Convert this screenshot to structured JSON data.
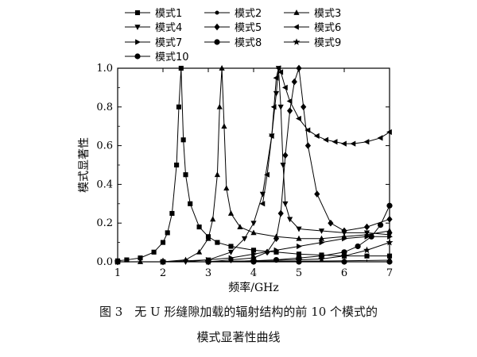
{
  "chart_data": {
    "type": "line",
    "xlabel": "频率/GHz",
    "ylabel": "模式显著性",
    "xlim": [
      1,
      7
    ],
    "ylim": [
      0,
      1.0
    ],
    "xticks": [
      "1",
      "2",
      "3",
      "4",
      "5",
      "6",
      "7"
    ],
    "yticks": [
      "0.0",
      "0.2",
      "0.4",
      "0.6",
      "0.8",
      "1.0"
    ],
    "grid": false,
    "legend_position": "top",
    "series": [
      {
        "name": "模式1",
        "marker": "square",
        "x": [
          1.0,
          1.2,
          1.5,
          1.8,
          2.0,
          2.1,
          2.2,
          2.3,
          2.35,
          2.4,
          2.45,
          2.5,
          2.6,
          2.8,
          3.0,
          3.2,
          3.5,
          4.0,
          4.5,
          5.0,
          5.5,
          6.0,
          6.5,
          7.0
        ],
        "y": [
          0.005,
          0.01,
          0.02,
          0.05,
          0.1,
          0.15,
          0.25,
          0.5,
          0.8,
          1.0,
          0.63,
          0.45,
          0.3,
          0.18,
          0.13,
          0.1,
          0.08,
          0.06,
          0.05,
          0.04,
          0.035,
          0.03,
          0.03,
          0.03
        ]
      },
      {
        "name": "模式2",
        "marker": "circle-small",
        "x": [
          1.0,
          2.0,
          3.0,
          4.0,
          5.0,
          6.0,
          7.0
        ],
        "y": [
          0.0,
          0.0,
          0.0,
          0.002,
          0.003,
          0.005,
          0.008
        ]
      },
      {
        "name": "模式3",
        "marker": "triangle-up",
        "x": [
          1.0,
          1.5,
          2.0,
          2.5,
          2.8,
          3.0,
          3.1,
          3.2,
          3.25,
          3.3,
          3.35,
          3.4,
          3.5,
          3.7,
          4.0,
          4.5,
          5.0,
          5.5,
          6.0,
          6.5,
          7.0
        ],
        "y": [
          0.0,
          0.0,
          0.0,
          0.01,
          0.05,
          0.12,
          0.22,
          0.45,
          0.8,
          1.0,
          0.7,
          0.38,
          0.25,
          0.18,
          0.15,
          0.13,
          0.12,
          0.12,
          0.13,
          0.14,
          0.16
        ]
      },
      {
        "name": "模式4",
        "marker": "triangle-down",
        "x": [
          1.0,
          2.0,
          2.5,
          3.0,
          3.5,
          3.8,
          4.0,
          4.2,
          4.4,
          4.5,
          4.55,
          4.6,
          4.65,
          4.7,
          4.8,
          5.0,
          5.5,
          6.0,
          6.5,
          7.0
        ],
        "y": [
          0.0,
          0.0,
          0.0,
          0.01,
          0.05,
          0.12,
          0.2,
          0.35,
          0.65,
          0.87,
          1.0,
          0.8,
          0.5,
          0.3,
          0.22,
          0.17,
          0.16,
          0.15,
          0.15,
          0.14
        ]
      },
      {
        "name": "模式5",
        "marker": "diamond",
        "x": [
          1.0,
          2.0,
          3.0,
          3.5,
          4.0,
          4.3,
          4.5,
          4.6,
          4.7,
          4.8,
          4.9,
          5.0,
          5.1,
          5.2,
          5.4,
          5.7,
          6.0,
          6.5,
          7.0
        ],
        "y": [
          0.0,
          0.0,
          0.0,
          0.01,
          0.02,
          0.05,
          0.12,
          0.25,
          0.55,
          0.78,
          0.93,
          1.0,
          0.8,
          0.6,
          0.35,
          0.2,
          0.16,
          0.18,
          0.22
        ]
      },
      {
        "name": "模式6",
        "marker": "triangle-left",
        "x": [
          4.2,
          4.3,
          4.4,
          4.45,
          4.5,
          4.55,
          4.6,
          4.7,
          4.8,
          5.0,
          5.2,
          5.4,
          5.6,
          5.8,
          6.0,
          6.2,
          6.5,
          6.8,
          7.0
        ],
        "y": [
          0.3,
          0.45,
          0.65,
          0.8,
          0.95,
          1.0,
          0.98,
          0.9,
          0.83,
          0.74,
          0.68,
          0.65,
          0.63,
          0.62,
          0.61,
          0.61,
          0.62,
          0.64,
          0.67
        ]
      },
      {
        "name": "模式7",
        "marker": "triangle-right",
        "x": [
          1.0,
          2.0,
          3.0,
          3.5,
          4.0,
          4.5,
          5.0,
          5.5,
          6.0,
          6.5,
          7.0
        ],
        "y": [
          0.0,
          0.0,
          0.01,
          0.02,
          0.04,
          0.06,
          0.08,
          0.1,
          0.12,
          0.13,
          0.13
        ]
      },
      {
        "name": "模式8",
        "marker": "circle",
        "x": [
          1.0,
          2.0,
          3.0,
          4.0,
          5.0,
          6.0,
          7.0
        ],
        "y": [
          0.0,
          0.0,
          0.0,
          0.0,
          0.0,
          0.0,
          0.0
        ]
      },
      {
        "name": "模式9",
        "marker": "star",
        "x": [
          1.0,
          2.0,
          3.0,
          4.0,
          5.0,
          5.5,
          6.0,
          6.5,
          7.0
        ],
        "y": [
          0.0,
          0.0,
          0.0,
          0.005,
          0.01,
          0.015,
          0.03,
          0.06,
          0.1
        ]
      },
      {
        "name": "模式10",
        "marker": "circle",
        "x": [
          1.0,
          2.0,
          3.0,
          4.0,
          4.5,
          5.0,
          5.5,
          6.0,
          6.3,
          6.6,
          6.8,
          7.0
        ],
        "y": [
          0.0,
          0.0,
          0.0,
          0.005,
          0.01,
          0.02,
          0.03,
          0.05,
          0.08,
          0.13,
          0.19,
          0.29
        ]
      }
    ]
  },
  "caption": {
    "line1": "图 3　无 U 形缝隙加载的辐射结构的前 10 个模式的",
    "line2": "模式显著性曲线"
  }
}
